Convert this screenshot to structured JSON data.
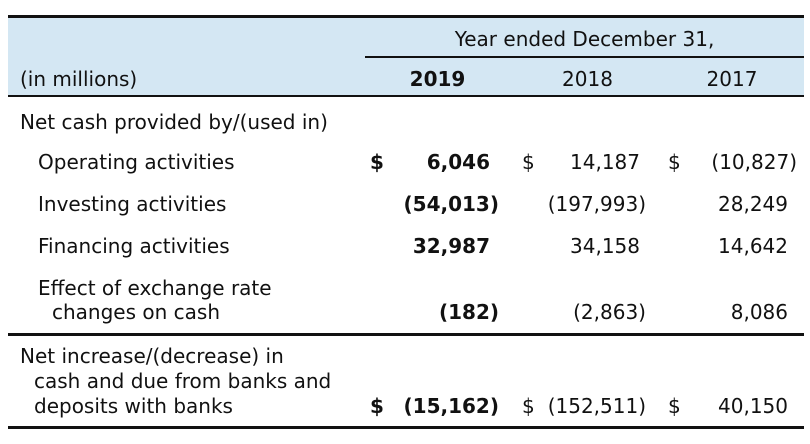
{
  "table": {
    "header": {
      "period_caption": "Year ended December 31,",
      "units_label": "(in millions)",
      "years": [
        "2019",
        "2018",
        "2017"
      ]
    },
    "section_label": "Net cash provided by/(used in)",
    "rows": [
      {
        "label": "Operating activities",
        "cells": [
          {
            "currency": "$",
            "value": "6,046"
          },
          {
            "currency": "$",
            "value": "14,187"
          },
          {
            "currency": "$",
            "value": "(10,827)"
          }
        ]
      },
      {
        "label": "Investing activities",
        "cells": [
          {
            "currency": "",
            "value": "(54,013)"
          },
          {
            "currency": "",
            "value": "(197,993)"
          },
          {
            "currency": "",
            "value": "28,249"
          }
        ]
      },
      {
        "label": "Financing activities",
        "cells": [
          {
            "currency": "",
            "value": "32,987"
          },
          {
            "currency": "",
            "value": "34,158"
          },
          {
            "currency": "",
            "value": "14,642"
          }
        ]
      },
      {
        "label_lines": [
          "Effect of exchange rate",
          "changes on cash"
        ],
        "cells": [
          {
            "currency": "",
            "value": "(182)"
          },
          {
            "currency": "",
            "value": "(2,863)"
          },
          {
            "currency": "",
            "value": "8,086"
          }
        ]
      }
    ],
    "total": {
      "label_lines": [
        "Net increase/(decrease) in",
        "cash and due from banks and",
        "deposits with banks"
      ],
      "cells": [
        {
          "currency": "$",
          "value": "(15,162)"
        },
        {
          "currency": "$",
          "value": "(152,511)"
        },
        {
          "currency": "$",
          "value": "40,150"
        }
      ]
    }
  },
  "colors": {
    "header_band": "#d4e7f3",
    "rule": "#111111",
    "text": "#111111"
  }
}
